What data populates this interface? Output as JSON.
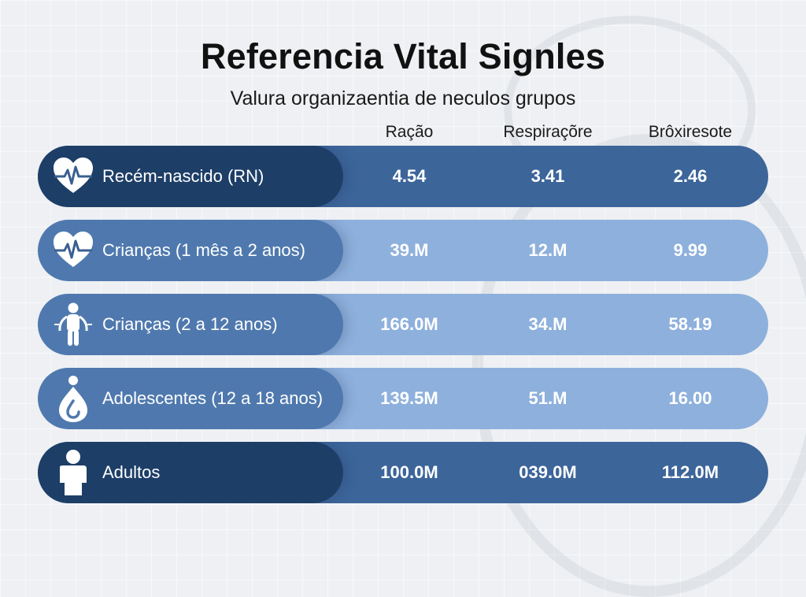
{
  "colors": {
    "dark_row_bg": "#3c659a",
    "dark_label_bg": "#1d3e67",
    "light_row_bg": "#8eb0dc",
    "light_label_bg": "#4f79ae",
    "title": "#111111"
  },
  "chart_data": {
    "type": "table",
    "title": "Referencia Vital Signles",
    "subtitle": "Valura organizaentia de neculos grupos",
    "columns": [
      "Ração",
      "Respiraçõre",
      "Brôxiresote"
    ],
    "rows": [
      {
        "label": "Recém-nascido (RN)",
        "icon": "heartbeat-icon",
        "style": "dark",
        "values": [
          "4.54",
          "3.41",
          "2.46"
        ]
      },
      {
        "label": "Crianças (1 mês a 2 anos)",
        "icon": "heartbeat-icon",
        "style": "light",
        "values": [
          "39.M",
          "12.M",
          "9.99"
        ]
      },
      {
        "label": "Crianças (2 a 12 anos)",
        "icon": "child-figure-icon",
        "style": "light",
        "values": [
          "166.0M",
          "34.M",
          "58.19"
        ]
      },
      {
        "label": "Adolescentes (12 a 18 anos)",
        "icon": "drop-figure-icon",
        "style": "light",
        "values": [
          "139.5M",
          "51.M",
          "16.00"
        ]
      },
      {
        "label": "Adultos",
        "icon": "person-icon",
        "style": "dark",
        "values": [
          "100.0M",
          "039.0M",
          "112.0M"
        ]
      }
    ]
  }
}
